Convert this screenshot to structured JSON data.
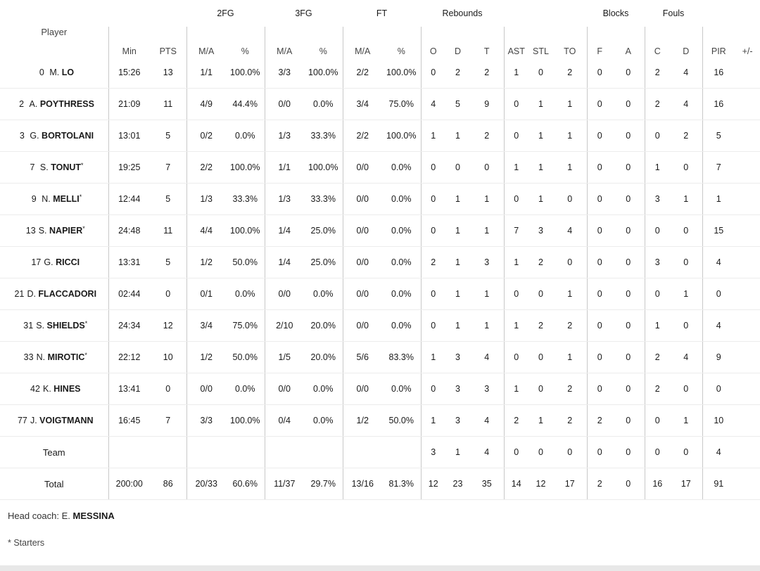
{
  "groups": {
    "fg2": "2FG",
    "fg3": "3FG",
    "ft": "FT",
    "rebounds": "Rebounds",
    "blocks": "Blocks",
    "fouls": "Fouls"
  },
  "columns": {
    "player": "Player",
    "min": "Min",
    "pts": "PTS",
    "fg2_ma": "M/A",
    "fg2_pct": "%",
    "fg3_ma": "M/A",
    "fg3_pct": "%",
    "ft_ma": "M/A",
    "ft_pct": "%",
    "reb_o": "O",
    "reb_d": "D",
    "reb_t": "T",
    "ast": "AST",
    "stl": "STL",
    "to": "TO",
    "blk_f": "F",
    "blk_a": "A",
    "foul_c": "C",
    "foul_d": "D",
    "pir": "PIR",
    "pm": "+/-"
  },
  "players": [
    {
      "num": "0",
      "initial": "M.",
      "last": "LO",
      "starter": false,
      "min": "15:26",
      "pts": "13",
      "fg2": "1/1",
      "fg2p": "100.0%",
      "fg3": "3/3",
      "fg3p": "100.0%",
      "ft": "2/2",
      "ftp": "100.0%",
      "o": "0",
      "d": "2",
      "t": "2",
      "ast": "1",
      "stl": "0",
      "to": "2",
      "bf": "0",
      "ba": "0",
      "fc": "2",
      "fd": "4",
      "pir": "16",
      "pm": ""
    },
    {
      "num": "2",
      "initial": "A.",
      "last": "POYTHRESS",
      "starter": false,
      "min": "21:09",
      "pts": "11",
      "fg2": "4/9",
      "fg2p": "44.4%",
      "fg3": "0/0",
      "fg3p": "0.0%",
      "ft": "3/4",
      "ftp": "75.0%",
      "o": "4",
      "d": "5",
      "t": "9",
      "ast": "0",
      "stl": "1",
      "to": "1",
      "bf": "0",
      "ba": "0",
      "fc": "2",
      "fd": "4",
      "pir": "16",
      "pm": ""
    },
    {
      "num": "3",
      "initial": "G.",
      "last": "BORTOLANI",
      "starter": false,
      "min": "13:01",
      "pts": "5",
      "fg2": "0/2",
      "fg2p": "0.0%",
      "fg3": "1/3",
      "fg3p": "33.3%",
      "ft": "2/2",
      "ftp": "100.0%",
      "o": "1",
      "d": "1",
      "t": "2",
      "ast": "0",
      "stl": "1",
      "to": "1",
      "bf": "0",
      "ba": "0",
      "fc": "0",
      "fd": "2",
      "pir": "5",
      "pm": ""
    },
    {
      "num": "7",
      "initial": "S.",
      "last": "TONUT",
      "starter": true,
      "min": "19:25",
      "pts": "7",
      "fg2": "2/2",
      "fg2p": "100.0%",
      "fg3": "1/1",
      "fg3p": "100.0%",
      "ft": "0/0",
      "ftp": "0.0%",
      "o": "0",
      "d": "0",
      "t": "0",
      "ast": "1",
      "stl": "1",
      "to": "1",
      "bf": "0",
      "ba": "0",
      "fc": "1",
      "fd": "0",
      "pir": "7",
      "pm": ""
    },
    {
      "num": "9",
      "initial": "N.",
      "last": "MELLI",
      "starter": true,
      "min": "12:44",
      "pts": "5",
      "fg2": "1/3",
      "fg2p": "33.3%",
      "fg3": "1/3",
      "fg3p": "33.3%",
      "ft": "0/0",
      "ftp": "0.0%",
      "o": "0",
      "d": "1",
      "t": "1",
      "ast": "0",
      "stl": "1",
      "to": "0",
      "bf": "0",
      "ba": "0",
      "fc": "3",
      "fd": "1",
      "pir": "1",
      "pm": ""
    },
    {
      "num": "13",
      "initial": "S.",
      "last": "NAPIER",
      "starter": true,
      "min": "24:48",
      "pts": "11",
      "fg2": "4/4",
      "fg2p": "100.0%",
      "fg3": "1/4",
      "fg3p": "25.0%",
      "ft": "0/0",
      "ftp": "0.0%",
      "o": "0",
      "d": "1",
      "t": "1",
      "ast": "7",
      "stl": "3",
      "to": "4",
      "bf": "0",
      "ba": "0",
      "fc": "0",
      "fd": "0",
      "pir": "15",
      "pm": ""
    },
    {
      "num": "17",
      "initial": "G.",
      "last": "RICCI",
      "starter": false,
      "min": "13:31",
      "pts": "5",
      "fg2": "1/2",
      "fg2p": "50.0%",
      "fg3": "1/4",
      "fg3p": "25.0%",
      "ft": "0/0",
      "ftp": "0.0%",
      "o": "2",
      "d": "1",
      "t": "3",
      "ast": "1",
      "stl": "2",
      "to": "0",
      "bf": "0",
      "ba": "0",
      "fc": "3",
      "fd": "0",
      "pir": "4",
      "pm": ""
    },
    {
      "num": "21",
      "initial": "D.",
      "last": "FLACCADORI",
      "starter": false,
      "min": "02:44",
      "pts": "0",
      "fg2": "0/1",
      "fg2p": "0.0%",
      "fg3": "0/0",
      "fg3p": "0.0%",
      "ft": "0/0",
      "ftp": "0.0%",
      "o": "0",
      "d": "1",
      "t": "1",
      "ast": "0",
      "stl": "0",
      "to": "1",
      "bf": "0",
      "ba": "0",
      "fc": "0",
      "fd": "1",
      "pir": "0",
      "pm": ""
    },
    {
      "num": "31",
      "initial": "S.",
      "last": "SHIELDS",
      "starter": true,
      "min": "24:34",
      "pts": "12",
      "fg2": "3/4",
      "fg2p": "75.0%",
      "fg3": "2/10",
      "fg3p": "20.0%",
      "ft": "0/0",
      "ftp": "0.0%",
      "o": "0",
      "d": "1",
      "t": "1",
      "ast": "1",
      "stl": "2",
      "to": "2",
      "bf": "0",
      "ba": "0",
      "fc": "1",
      "fd": "0",
      "pir": "4",
      "pm": ""
    },
    {
      "num": "33",
      "initial": "N.",
      "last": "MIROTIC",
      "starter": true,
      "min": "22:12",
      "pts": "10",
      "fg2": "1/2",
      "fg2p": "50.0%",
      "fg3": "1/5",
      "fg3p": "20.0%",
      "ft": "5/6",
      "ftp": "83.3%",
      "o": "1",
      "d": "3",
      "t": "4",
      "ast": "0",
      "stl": "0",
      "to": "1",
      "bf": "0",
      "ba": "0",
      "fc": "2",
      "fd": "4",
      "pir": "9",
      "pm": ""
    },
    {
      "num": "42",
      "initial": "K.",
      "last": "HINES",
      "starter": false,
      "min": "13:41",
      "pts": "0",
      "fg2": "0/0",
      "fg2p": "0.0%",
      "fg3": "0/0",
      "fg3p": "0.0%",
      "ft": "0/0",
      "ftp": "0.0%",
      "o": "0",
      "d": "3",
      "t": "3",
      "ast": "1",
      "stl": "0",
      "to": "2",
      "bf": "0",
      "ba": "0",
      "fc": "2",
      "fd": "0",
      "pir": "0",
      "pm": ""
    },
    {
      "num": "77",
      "initial": "J.",
      "last": "VOIGTMANN",
      "starter": false,
      "min": "16:45",
      "pts": "7",
      "fg2": "3/3",
      "fg2p": "100.0%",
      "fg3": "0/4",
      "fg3p": "0.0%",
      "ft": "1/2",
      "ftp": "50.0%",
      "o": "1",
      "d": "3",
      "t": "4",
      "ast": "2",
      "stl": "1",
      "to": "2",
      "bf": "2",
      "ba": "0",
      "fc": "0",
      "fd": "1",
      "pir": "10",
      "pm": ""
    }
  ],
  "team": {
    "label": "Team",
    "min": "",
    "pts": "",
    "fg2": "",
    "fg2p": "",
    "fg3": "",
    "fg3p": "",
    "ft": "",
    "ftp": "",
    "o": "3",
    "d": "1",
    "t": "4",
    "ast": "0",
    "stl": "0",
    "to": "0",
    "bf": "0",
    "ba": "0",
    "fc": "0",
    "fd": "0",
    "pir": "4",
    "pm": ""
  },
  "total": {
    "label": "Total",
    "min": "200:00",
    "pts": "86",
    "fg2": "20/33",
    "fg2p": "60.6%",
    "fg3": "11/37",
    "fg3p": "29.7%",
    "ft": "13/16",
    "ftp": "81.3%",
    "o": "12",
    "d": "23",
    "t": "35",
    "ast": "14",
    "stl": "12",
    "to": "17",
    "bf": "2",
    "ba": "0",
    "fc": "16",
    "fd": "17",
    "pir": "91",
    "pm": ""
  },
  "coach": {
    "label": "Head coach:",
    "initial": "E.",
    "last": "MESSINA"
  },
  "starter_mark": "*",
  "starters_note": "* Starters"
}
